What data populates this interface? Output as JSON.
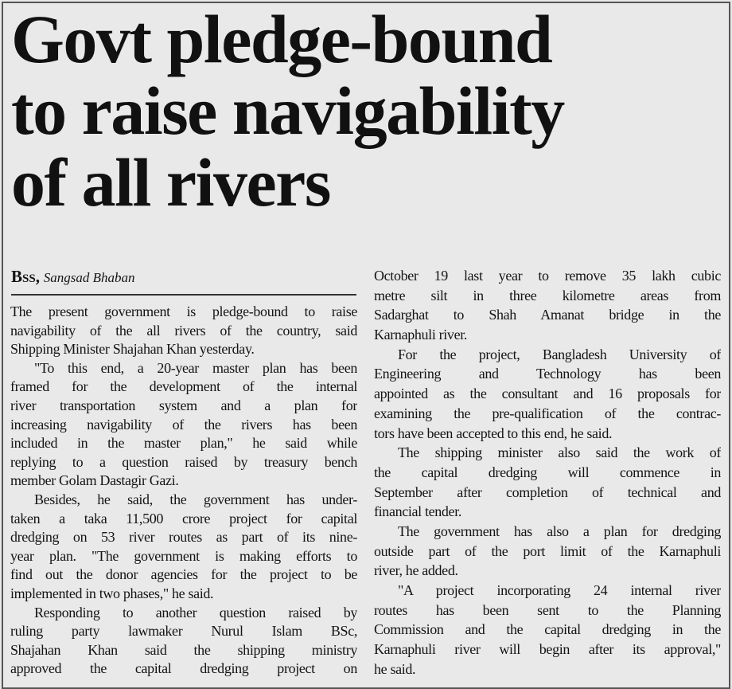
{
  "headline": [
    "Govt pledge-bound",
    "to raise navigability",
    "of all rivers"
  ],
  "byline": {
    "agency": "Bss,",
    "place": "Sangsad Bhaban"
  },
  "columns": {
    "left": [
      {
        "text": "The present government is pledge-bound to raise"
      },
      {
        "text": "navigability of the all rivers of the country, said"
      },
      {
        "text": "Shipping Minister Shajahan Khan yesterday.",
        "last": true
      },
      {
        "text": "\"To this end, a 20-year master plan has been",
        "indent": true
      },
      {
        "text": "framed for the development of the internal"
      },
      {
        "text": "river transportation system and a plan for"
      },
      {
        "text": "increasing navigability of the rivers has been"
      },
      {
        "text": "included in the master plan,\" he said while"
      },
      {
        "text": "replying to a question raised by treasury bench"
      },
      {
        "text": "member Golam Dastagir Gazi.",
        "last": true
      },
      {
        "text": "Besides, he said, the government has under-",
        "indent": true
      },
      {
        "text": "taken a taka 11,500 crore project for capital"
      },
      {
        "text": "dredging on 53 river routes as part of its nine-"
      },
      {
        "text": "year plan. \"The government is making efforts to"
      },
      {
        "text": "find out the donor agencies for the project to be"
      },
      {
        "text": "implemented in two phases,\" he said.",
        "last": true
      },
      {
        "text": "Responding to another question raised by",
        "indent": true
      },
      {
        "text": "ruling party lawmaker Nurul Islam BSc,"
      },
      {
        "text": "Shajahan Khan said the shipping ministry"
      },
      {
        "text": "approved the capital dredging project on"
      }
    ],
    "right": [
      {
        "text": "October 19 last year to remove 35 lakh cubic"
      },
      {
        "text": "metre silt in three kilometre areas from"
      },
      {
        "text": "Sadarghat to Shah Amanat bridge in the"
      },
      {
        "text": "Karnaphuli river.",
        "last": true
      },
      {
        "text": "For the project, Bangladesh University of",
        "indent": true
      },
      {
        "text": "Engineering and Technology has been"
      },
      {
        "text": "appointed as the consultant and 16 proposals for"
      },
      {
        "text": "examining the pre-qualification of the contrac-"
      },
      {
        "text": "tors have been accepted to this end, he said.",
        "last": true
      },
      {
        "text": "The shipping minister also said the work of",
        "indent": true
      },
      {
        "text": "the capital dredging will commence in"
      },
      {
        "text": "September after completion of technical and"
      },
      {
        "text": "financial tender.",
        "last": true
      },
      {
        "text": "The government has also a plan for dredging",
        "indent": true
      },
      {
        "text": "outside part of the port limit of the Karnaphuli"
      },
      {
        "text": "river, he added.",
        "last": true
      },
      {
        "text": "\"A project incorporating 24 internal river",
        "indent": true
      },
      {
        "text": "routes has been sent to the Planning"
      },
      {
        "text": "Commission and the capital dredging in the"
      },
      {
        "text": "Karnaphuli river will begin after its approval,\""
      },
      {
        "text": "he said.",
        "last": true
      }
    ]
  }
}
